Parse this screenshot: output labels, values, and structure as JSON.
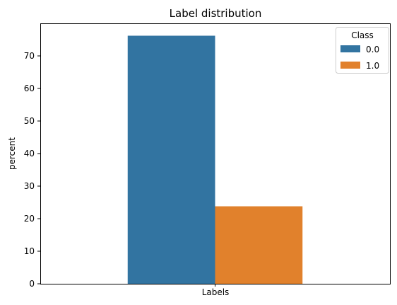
{
  "chart_data": {
    "type": "bar",
    "title": "Label distribution",
    "xlabel": "Labels",
    "ylabel": "percent",
    "categories": [
      ""
    ],
    "series": [
      {
        "name": "0.0",
        "values": [
          76.2
        ],
        "color": "#3274a1"
      },
      {
        "name": "1.0",
        "values": [
          23.8
        ],
        "color": "#e1812c"
      }
    ],
    "ylim": [
      0,
      80
    ],
    "yticks": [
      0,
      10,
      20,
      30,
      40,
      50,
      60,
      70
    ],
    "grid": false,
    "legend": {
      "title": "Class",
      "placement": "top-right"
    }
  }
}
